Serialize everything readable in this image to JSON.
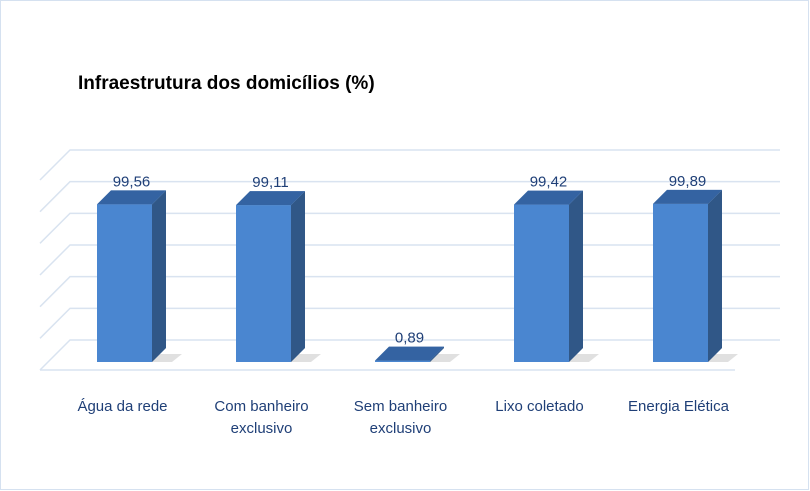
{
  "chart_data": {
    "type": "bar3d",
    "title": "Infraestrutura dos domicílios (%)",
    "categories": [
      "Água da rede",
      "Com banheiro exclusivo",
      "Sem banheiro exclusivo",
      "Lixo coletado",
      "Energia Elética"
    ],
    "values": [
      99.56,
      99.11,
      0.89,
      99.42,
      99.89
    ],
    "value_labels": [
      "99,56",
      "99,11",
      "0,89",
      "99,42",
      "99,89"
    ],
    "color": "#4a86d0",
    "ylim": [
      0,
      120
    ],
    "yticks": [
      0,
      20,
      40,
      60,
      80,
      100,
      120
    ],
    "grid": true
  }
}
